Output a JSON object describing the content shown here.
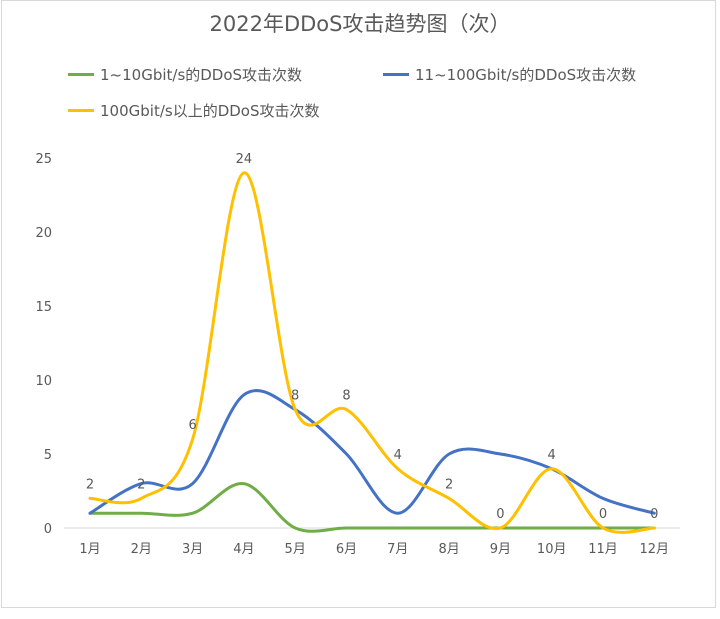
{
  "chart_data": {
    "type": "line",
    "title": "2022年DDoS攻击趋势图（次）",
    "categories": [
      "1月",
      "2月",
      "3月",
      "4月",
      "5月",
      "6月",
      "7月",
      "8月",
      "9月",
      "10月",
      "11月",
      "12月"
    ],
    "series": [
      {
        "name": "1~10Gbit/s的DDoS攻击次数",
        "color": "#70AD47",
        "values": [
          1,
          1,
          1,
          3,
          0,
          0,
          0,
          0,
          0,
          0,
          0,
          0
        ]
      },
      {
        "name": "11~100Gbit/s的DDoS攻击次数",
        "color": "#4472C4",
        "values": [
          1,
          3,
          3,
          9,
          8,
          5,
          1,
          5,
          5,
          4,
          2,
          1
        ]
      },
      {
        "name": "100Gbit/s以上的DDoS攻击次数",
        "color": "#FFC000",
        "values": [
          2,
          2,
          6,
          24,
          8,
          8,
          4,
          2,
          0,
          4,
          0,
          0
        ],
        "data_labels": true
      }
    ],
    "xlabel": "",
    "ylabel": "",
    "ylim": [
      0,
      25
    ],
    "yticks": [
      0,
      5,
      10,
      15,
      20,
      25
    ],
    "grid": false,
    "smooth": true,
    "legend_position": "top"
  },
  "title": "2022年DDoS攻击趋势图（次）",
  "legend": [
    {
      "label": "1~10Gbit/s的DDoS攻击次数",
      "color": "#70AD47"
    },
    {
      "label": "11~100Gbit/s的DDoS攻击次数",
      "color": "#4472C4"
    },
    {
      "label": "100Gbit/s以上的DDoS攻击次数",
      "color": "#FFC000"
    }
  ]
}
